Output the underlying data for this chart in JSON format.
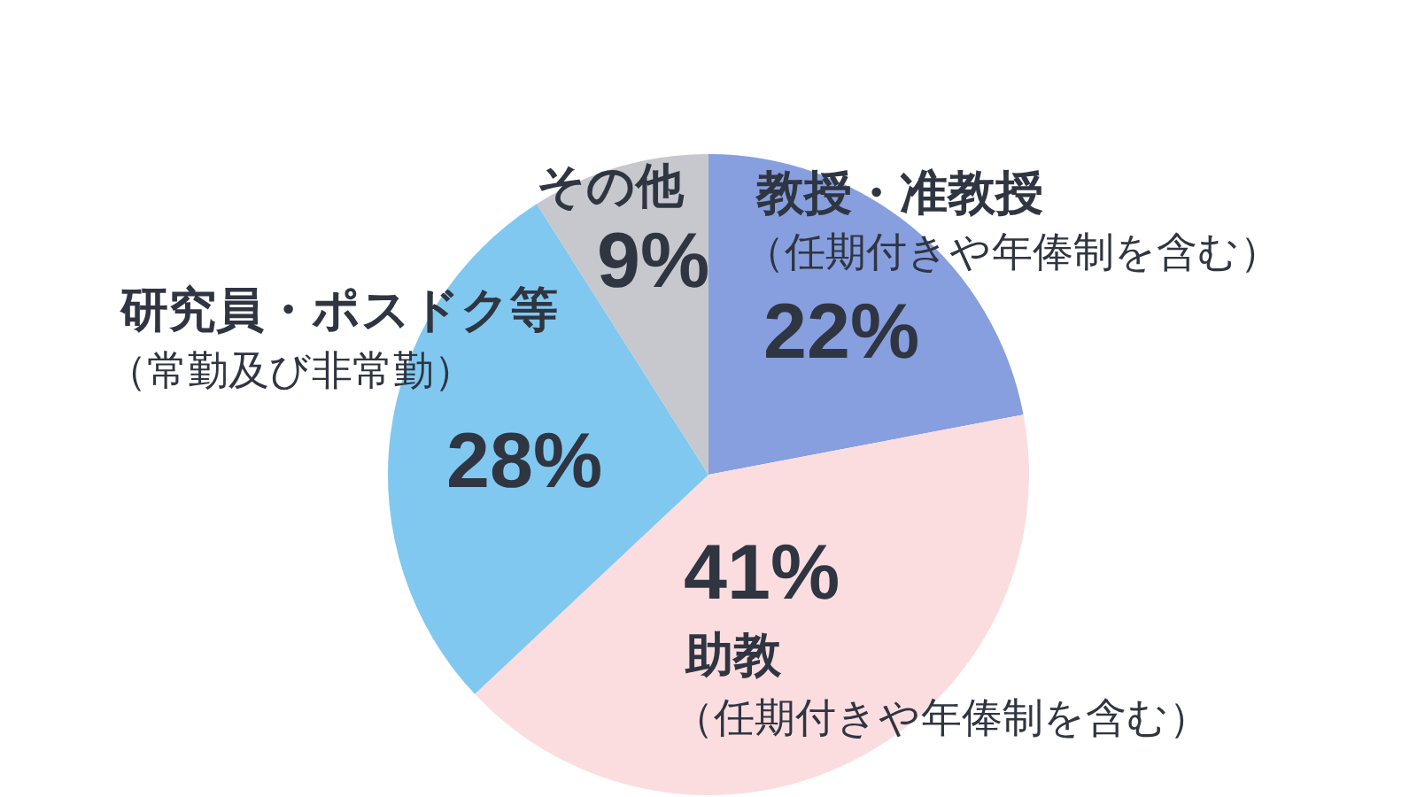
{
  "chart_data": {
    "type": "pie",
    "categories": [
      "教授・准教授（任期付きや年俸制を含む）",
      "助教（任期付きや年俸制を含む）",
      "研究員・ポスドク等（常勤及び非常勤）",
      "その他"
    ],
    "values": [
      22,
      41,
      28,
      9
    ],
    "colors": [
      "#879fdf",
      "#fbdde0",
      "#80c8f0",
      "#c6c8cd"
    ],
    "value_labels": [
      "22%",
      "41%",
      "28%",
      "9%"
    ]
  }
}
